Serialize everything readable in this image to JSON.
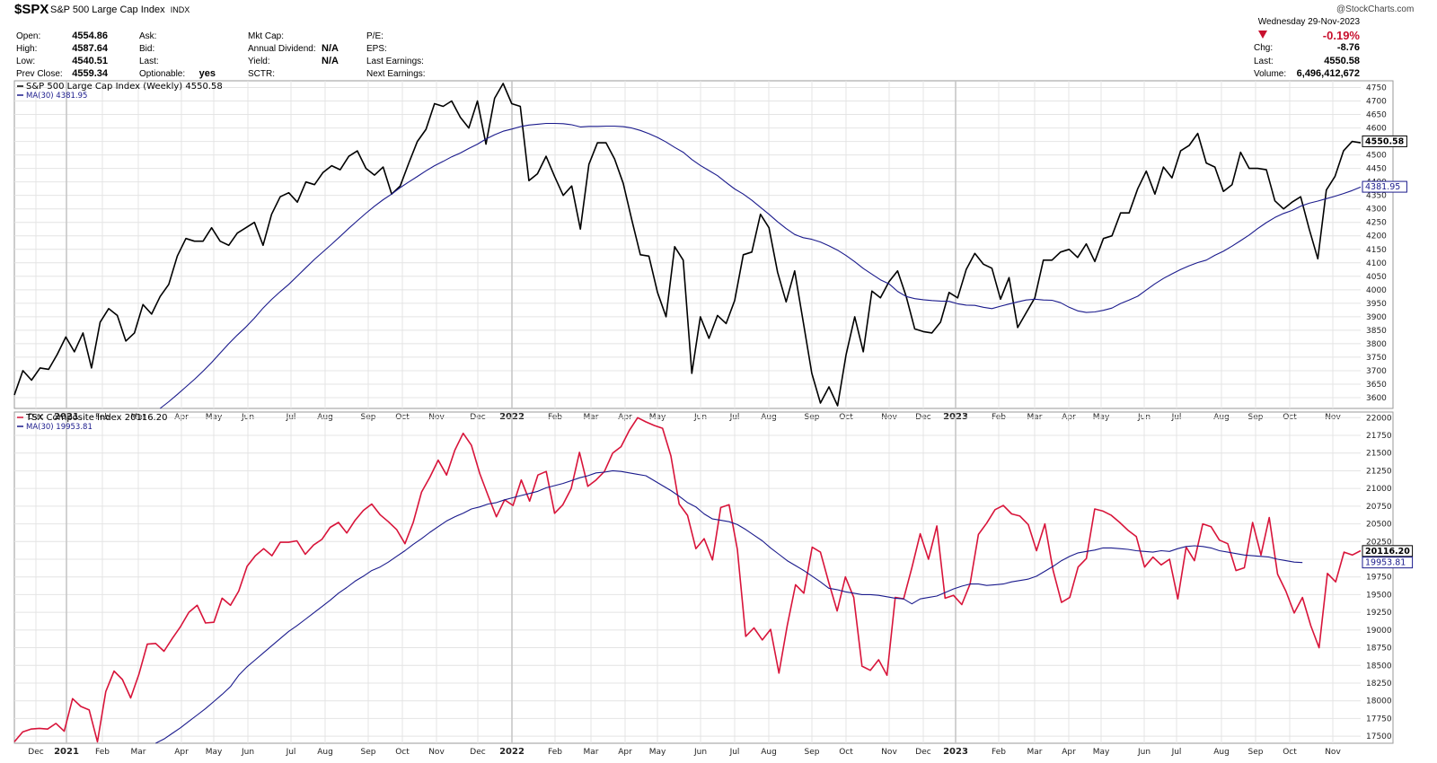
{
  "header": {
    "ticker": "$SPX",
    "name": "S&P 500 Large Cap Index",
    "exchange": "INDX",
    "watermark": "@StockCharts.com",
    "date": "Wednesday  29-Nov-2023",
    "pct_change": "-0.19%",
    "chg_label": "Chg:",
    "chg_value": "-8.76",
    "last_label": "Last:",
    "last_value": "4550.58",
    "volume_label": "Volume:",
    "volume_value": "6,496,412,672",
    "fields": [
      {
        "label": "Open:",
        "value": "4554.86"
      },
      {
        "label": "High:",
        "value": "4587.64"
      },
      {
        "label": "Low:",
        "value": "4540.51"
      },
      {
        "label": "Prev Close:",
        "value": "4559.34"
      },
      {
        "label": "Ask:",
        "value": ""
      },
      {
        "label": "Bid:",
        "value": ""
      },
      {
        "label": "Last:",
        "value": ""
      },
      {
        "label": "Optionable:",
        "value": "yes"
      },
      {
        "label": "Mkt Cap:",
        "value": ""
      },
      {
        "label": "Annual Dividend:",
        "value": "N/A"
      },
      {
        "label": "Yield:",
        "value": "N/A"
      },
      {
        "label": "SCTR:",
        "value": ""
      },
      {
        "label": "P/E:",
        "value": ""
      },
      {
        "label": "EPS:",
        "value": ""
      },
      {
        "label": "Last Earnings:",
        "value": ""
      },
      {
        "label": "Next Earnings:",
        "value": ""
      }
    ]
  },
  "colors": {
    "spx": "#000000",
    "ma": "#1a1a8c",
    "tsx": "#d8143a",
    "grid": "#e4e4e4",
    "down": "#c8102e"
  },
  "chart_data": [
    {
      "type": "line",
      "legend": [
        "S&P 500 Large Cap Index (Weekly) 4550.58",
        "MA(30) 4381.95"
      ],
      "last_label": "4550.58",
      "ma_label": "4381.95",
      "ylim": [
        3560,
        4775
      ],
      "yticks": [
        "3600",
        "3650",
        "3700",
        "3750",
        "3800",
        "3850",
        "3900",
        "3950",
        "4000",
        "4050",
        "4100",
        "4150",
        "4200",
        "4250",
        "4300",
        "4350",
        "4400",
        "4450",
        "4500",
        "4550",
        "4600",
        "4650",
        "4700",
        "4750"
      ],
      "x_labels": [
        "Dec",
        "2021",
        "Feb",
        "Mar",
        "Apr",
        "May",
        "Jun",
        "Jul",
        "Aug",
        "Sep",
        "Oct",
        "Nov",
        "Dec",
        "2022",
        "Feb",
        "Mar",
        "Apr",
        "May",
        "Jun",
        "Jul",
        "Aug",
        "Sep",
        "Oct",
        "Nov",
        "Dec",
        "2023",
        "Feb",
        "Mar",
        "Apr",
        "May",
        "Jun",
        "Jul",
        "Aug",
        "Sep",
        "Oct",
        "Nov"
      ],
      "series": [
        {
          "values": [
            3610,
            3700,
            3665,
            3710,
            3705,
            3760,
            3825,
            3770,
            3840,
            3710,
            3880,
            3930,
            3905,
            3810,
            3840,
            3945,
            3910,
            3975,
            4020,
            4125,
            4190,
            4180,
            4180,
            4230,
            4180,
            4165,
            4210,
            4230,
            4250,
            4165,
            4280,
            4345,
            4360,
            4325,
            4400,
            4390,
            4435,
            4460,
            4445,
            4495,
            4515,
            4450,
            4425,
            4455,
            4355,
            4385,
            4470,
            4550,
            4595,
            4690,
            4680,
            4700,
            4640,
            4600,
            4700,
            4540,
            4710,
            4765,
            4690,
            4680,
            4405,
            4430,
            4495,
            4420,
            4350,
            4385,
            4225,
            4465,
            4545,
            4545,
            4485,
            4395,
            4260,
            4130,
            4125,
            3990,
            3900,
            4160,
            4110,
            3690,
            3900,
            3820,
            3905,
            3875,
            3960,
            4130,
            4140,
            4280,
            4230,
            4065,
            3955,
            4070,
            3880,
            3690,
            3580,
            3640,
            3570,
            3760,
            3900,
            3770,
            3995,
            3970,
            4030,
            4070,
            3975,
            3855,
            3845,
            3840,
            3880,
            3990,
            3970,
            4075,
            4135,
            4095,
            4080,
            3965,
            4045,
            3860,
            3915,
            3970,
            4110,
            4110,
            4140,
            4150,
            4120,
            4170,
            4105,
            4190,
            4200,
            4285,
            4285,
            4375,
            4440,
            4355,
            4455,
            4415,
            4515,
            4535,
            4580,
            4470,
            4455,
            4365,
            4390,
            4510,
            4450,
            4450,
            4445,
            4330,
            4300,
            4325,
            4345,
            4225,
            4115,
            4370,
            4420,
            4515,
            4550,
            4545
          ]
        },
        {
          "values": [
            null,
            null,
            null,
            null,
            null,
            null,
            null,
            null,
            null,
            null,
            null,
            null,
            null,
            null,
            null,
            null,
            null,
            3560,
            3585,
            3612,
            3640,
            3668,
            3698,
            3730,
            3765,
            3800,
            3832,
            3862,
            3895,
            3932,
            3964,
            3993,
            4020,
            4051,
            4082,
            4113,
            4141,
            4169,
            4198,
            4228,
            4256,
            4284,
            4310,
            4334,
            4355,
            4379,
            4400,
            4420,
            4441,
            4460,
            4476,
            4493,
            4507,
            4524,
            4540,
            4559,
            4575,
            4588,
            4596,
            4605,
            4611,
            4614,
            4617,
            4617,
            4616,
            4612,
            4604,
            4606,
            4606,
            4607,
            4607,
            4605,
            4600,
            4591,
            4579,
            4565,
            4548,
            4528,
            4510,
            4483,
            4461,
            4442,
            4423,
            4398,
            4374,
            4355,
            4332,
            4306,
            4280,
            4252,
            4227,
            4205,
            4193,
            4187,
            4177,
            4163,
            4147,
            4127,
            4104,
            4079,
            4058,
            4037,
            4022,
            3994,
            3975,
            3967,
            3963,
            3960,
            3958,
            3957,
            3948,
            3943,
            3942,
            3935,
            3930,
            3939,
            3947,
            3955,
            3962,
            3965,
            3962,
            3961,
            3952,
            3935,
            3922,
            3916,
            3918,
            3924,
            3932,
            3949,
            3962,
            3976,
            3999,
            4022,
            4042,
            4059,
            4075,
            4089,
            4101,
            4110,
            4128,
            4143,
            4162,
            4182,
            4203,
            4227,
            4249,
            4268,
            4283,
            4294,
            4310,
            4321,
            4329,
            4338,
            4347,
            4357,
            4368,
            4381
          ]
        }
      ]
    },
    {
      "type": "line",
      "legend": [
        "TSX Composite Index 20116.20",
        "MA(30) 19953.81"
      ],
      "last_label": "20116.20",
      "ma_label": "19953.81",
      "ylim": [
        17400,
        22080
      ],
      "yticks": [
        "17500",
        "17750",
        "18000",
        "18250",
        "18500",
        "18750",
        "19000",
        "19250",
        "19500",
        "19750",
        "20000",
        "20250",
        "20500",
        "20750",
        "21000",
        "21250",
        "21500",
        "21750",
        "22000"
      ],
      "x_labels": [
        "Dec",
        "2021",
        "Feb",
        "Mar",
        "Apr",
        "May",
        "Jun",
        "Jul",
        "Aug",
        "Sep",
        "Oct",
        "Nov",
        "Dec",
        "2022",
        "Feb",
        "Mar",
        "Apr",
        "May",
        "Jun",
        "Jul",
        "Aug",
        "Sep",
        "Oct",
        "Nov",
        "Dec",
        "2023",
        "Feb",
        "Mar",
        "Apr",
        "May",
        "Jun",
        "Jul",
        "Aug",
        "Sep",
        "Oct",
        "Nov"
      ],
      "series": [
        {
          "values": [
            17420,
            17560,
            17600,
            17610,
            17600,
            17680,
            17570,
            18030,
            17920,
            17870,
            17420,
            18130,
            18420,
            18300,
            18040,
            18380,
            18800,
            18810,
            18700,
            18880,
            19050,
            19250,
            19350,
            19100,
            19110,
            19450,
            19350,
            19550,
            19900,
            20050,
            20150,
            20050,
            20240,
            20240,
            20260,
            20070,
            20200,
            20280,
            20450,
            20520,
            20370,
            20550,
            20690,
            20780,
            20630,
            20530,
            20420,
            20220,
            20520,
            20950,
            21160,
            21400,
            21190,
            21540,
            21780,
            21610,
            21210,
            20900,
            20600,
            20840,
            20760,
            21120,
            20820,
            21190,
            21240,
            20650,
            20770,
            21000,
            21510,
            21030,
            21120,
            21240,
            21500,
            21590,
            21820,
            22000,
            21940,
            21890,
            21850,
            21460,
            20780,
            20620,
            20150,
            20290,
            19990,
            20730,
            20770,
            20140,
            18910,
            19030,
            18860,
            19010,
            18390,
            19060,
            19640,
            19520,
            20170,
            20100,
            19670,
            19270,
            19750,
            19460,
            18490,
            18430,
            18580,
            18360,
            19460,
            19440,
            19880,
            20360,
            20000,
            20470,
            19450,
            19490,
            19360,
            19650,
            20350,
            20510,
            20700,
            20760,
            20640,
            20610,
            20490,
            20120,
            20500,
            19840,
            19390,
            19460,
            19890,
            20010,
            20710,
            20680,
            20620,
            20520,
            20410,
            20320,
            19890,
            20030,
            19920,
            20000,
            19440,
            20170,
            19980,
            20500,
            20460,
            20270,
            20220,
            19840,
            19880,
            20520,
            20060,
            20590,
            19790,
            19550,
            19240,
            19460,
            19060,
            18750,
            19800,
            19680,
            20100,
            20060,
            20120
          ]
        },
        {
          "values": [
            null,
            null,
            null,
            null,
            null,
            null,
            null,
            null,
            null,
            null,
            null,
            null,
            null,
            null,
            null,
            null,
            null,
            17400,
            17460,
            17540,
            17620,
            17710,
            17800,
            17890,
            17990,
            18090,
            18200,
            18360,
            18480,
            18580,
            18680,
            18780,
            18880,
            18980,
            19060,
            19150,
            19240,
            19330,
            19420,
            19520,
            19600,
            19690,
            19760,
            19840,
            19890,
            19960,
            20040,
            20120,
            20210,
            20290,
            20380,
            20460,
            20540,
            20600,
            20650,
            20710,
            20740,
            20780,
            20800,
            20840,
            20870,
            20900,
            20930,
            20960,
            21010,
            21040,
            21070,
            21110,
            21150,
            21180,
            21220,
            21230,
            21250,
            21240,
            21220,
            21200,
            21180,
            21110,
            21040,
            20970,
            20890,
            20800,
            20740,
            20640,
            20570,
            20550,
            20530,
            20490,
            20420,
            20340,
            20260,
            20160,
            20070,
            19980,
            19910,
            19840,
            19760,
            19680,
            19590,
            19570,
            19540,
            19520,
            19500,
            19500,
            19490,
            19470,
            19450,
            19440,
            19370,
            19440,
            19460,
            19480,
            19530,
            19580,
            19620,
            19650,
            19650,
            19630,
            19640,
            19650,
            19680,
            19700,
            19720,
            19760,
            19830,
            19900,
            19980,
            20040,
            20090,
            20110,
            20130,
            20160,
            20160,
            20150,
            20140,
            20120,
            20110,
            20100,
            20120,
            20110,
            20150,
            20180,
            20190,
            20180,
            20160,
            20120,
            20100,
            20080,
            20060,
            20050,
            20040,
            20030,
            20000,
            19980,
            19960,
            19953
          ]
        }
      ]
    }
  ]
}
